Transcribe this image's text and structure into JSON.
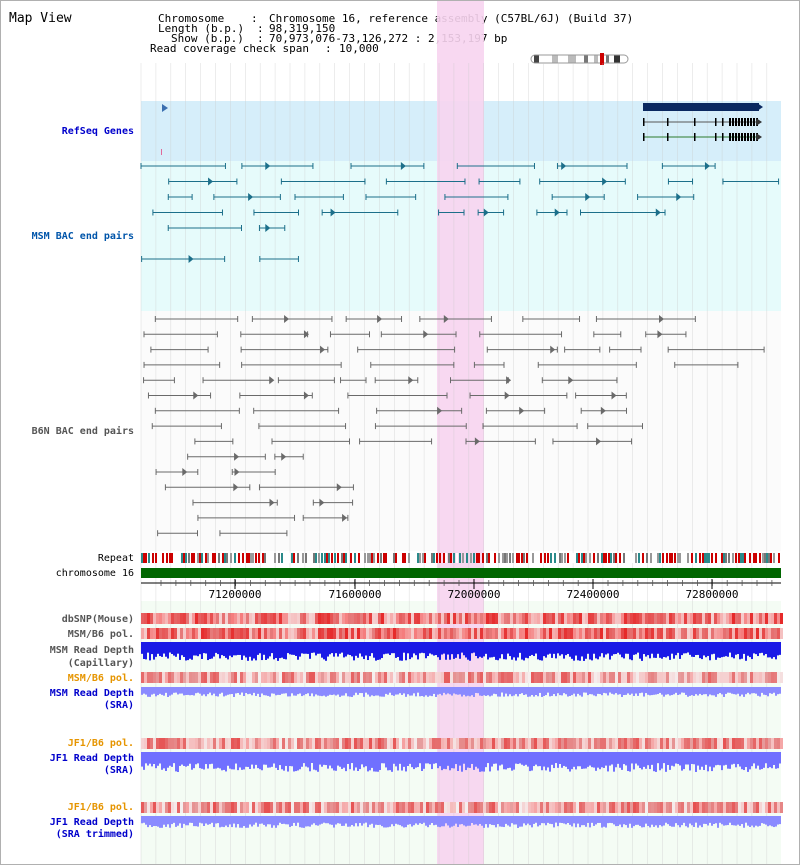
{
  "view_title": "Map View",
  "info": {
    "chromosome_key": "Chromosome",
    "chromosome_value": "Chromosome 16, reference assembly (C57BL/6J) (Build 37)",
    "length_key": "Length (b.p.)",
    "length_value": "98,319,150",
    "show_key": "Show (b.p.)",
    "show_value": "70,973,076-73,126,272 : 2,153,197 bp",
    "coverage_key": "Read coverage check span",
    "coverage_value": "10,000"
  },
  "tracks": {
    "refseq": "RefSeq Genes",
    "msm_bac": "MSM BAC end pairs",
    "b6n_bac": "B6N BAC end pairs",
    "repeat": "Repeat",
    "chromosome": "chromosome 16",
    "dbsnp": "dbSNP(Mouse)",
    "msm_b6_pol_1": "MSM/B6 pol.",
    "msm_depth_cap_1": "MSM Read Depth",
    "msm_depth_cap_2": "(Capillary)",
    "msm_b6_pol_2": "MSM/B6 pol.",
    "msm_depth_sra_1": "MSM Read Depth",
    "msm_depth_sra_2": "(SRA)",
    "jf1_b6_pol_1": "JF1/B6 pol.",
    "jf1_depth_sra_1": "JF1 Read Depth",
    "jf1_depth_sra_2": "(SRA)",
    "jf1_b6_pol_2": "JF1/B6 pol.",
    "jf1_depth_trim_1": "JF1 Read Depth",
    "jf1_depth_trim_2": "(SRA trimmed)"
  },
  "ticks": [
    "71200000",
    "71600000",
    "72000000",
    "72400000",
    "72800000"
  ],
  "colors": {
    "refseq_bg": "#d6eefa",
    "bac_bg": "#e6fbfb",
    "highlight": "#f7d4f0",
    "msm_label": "#0055aa",
    "b6n_label": "#555555",
    "blue_label": "#0000cc",
    "orange_label": "#e69500",
    "chromosome_bar": "#006600",
    "depth_cap": "#1a1ae6",
    "depth_sra": "#8a8aff"
  }
}
